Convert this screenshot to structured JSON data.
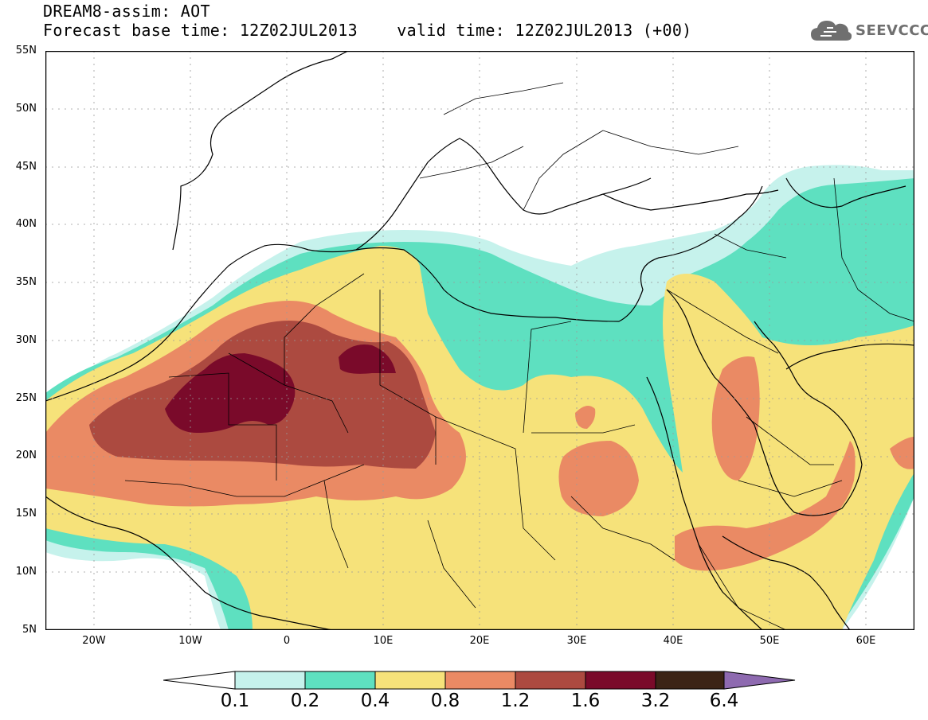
{
  "header": {
    "title_line1": "DREAM8-assim: AOT",
    "title_line2": "Forecast base time: 12Z02JUL2013    valid time: 12Z02JUL2013 (+00)"
  },
  "logo": {
    "text": "SEEVCCC",
    "icon": "cloud-icon"
  },
  "map": {
    "lat_labels": [
      "55N",
      "50N",
      "45N",
      "40N",
      "35N",
      "30N",
      "25N",
      "20N",
      "15N",
      "10N",
      "5N"
    ],
    "lon_labels": [
      "20W",
      "10W",
      "0",
      "10E",
      "20E",
      "30E",
      "40E",
      "50E",
      "60E"
    ],
    "lat_range": [
      5,
      55
    ],
    "lon_range": [
      -25,
      65
    ],
    "grid": "dotted"
  },
  "legend": {
    "labels": [
      "0.1",
      "0.2",
      "0.4",
      "0.8",
      "1.2",
      "1.6",
      "3.2",
      "6.4"
    ],
    "colors": [
      "#ffffff",
      "#c6f2ec",
      "#5ee0c0",
      "#f6e27a",
      "#ea8a64",
      "#ac4a40",
      "#7a0a2a",
      "#3c2416",
      "#8e6ab0"
    ]
  }
}
